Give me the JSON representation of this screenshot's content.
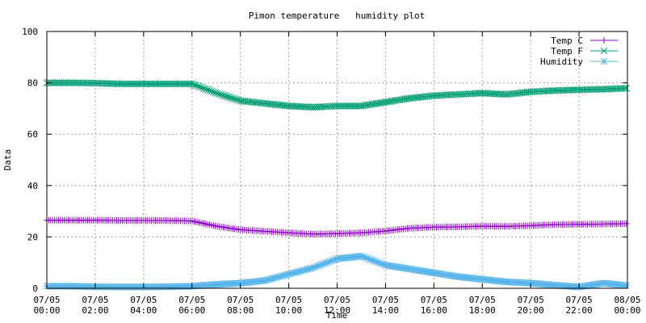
{
  "chart_data": {
    "type": "line",
    "title": "Pimon temperature   humidity plot",
    "xlabel": "Time",
    "ylabel": "Data",
    "xlim": [
      "07/05 00:00",
      "08/05 00:00"
    ],
    "ylim": [
      0,
      100
    ],
    "grid": true,
    "legend_position": "top-right",
    "y_ticks": [
      "0",
      "20",
      "40",
      "60",
      "80",
      "100"
    ],
    "x_ticks": [
      [
        "07/05",
        "00:00"
      ],
      [
        "07/05",
        "02:00"
      ],
      [
        "07/05",
        "04:00"
      ],
      [
        "07/05",
        "06:00"
      ],
      [
        "07/05",
        "08:00"
      ],
      [
        "07/05",
        "10:00"
      ],
      [
        "07/05",
        "12:00"
      ],
      [
        "07/05",
        "14:00"
      ],
      [
        "07/05",
        "16:00"
      ],
      [
        "07/05",
        "18:00"
      ],
      [
        "07/05",
        "20:00"
      ],
      [
        "07/05",
        "22:00"
      ],
      [
        "08/05",
        "00:00"
      ]
    ],
    "x": [
      "00:00",
      "01:00",
      "02:00",
      "03:00",
      "04:00",
      "05:00",
      "06:00",
      "07:00",
      "08:00",
      "09:00",
      "10:00",
      "11:00",
      "12:00",
      "13:00",
      "14:00",
      "15:00",
      "16:00",
      "17:00",
      "18:00",
      "19:00",
      "20:00",
      "21:00",
      "22:00",
      "23:00",
      "24:00"
    ],
    "series": [
      {
        "name": "Temp C",
        "color": "#9400d3",
        "marker": "plus",
        "values": [
          26.5,
          26.5,
          26.5,
          26.4,
          26.4,
          26.4,
          26.2,
          24.2,
          22.8,
          22.2,
          21.6,
          21.1,
          21.3,
          21.6,
          22.3,
          23.4,
          23.8,
          23.9,
          24.2,
          24.1,
          24.4,
          24.8,
          24.9,
          25.0,
          25.2
        ]
      },
      {
        "name": "Temp F",
        "color": "#009e73",
        "marker": "cross",
        "values": [
          80.0,
          80.0,
          79.9,
          79.6,
          79.6,
          79.6,
          79.6,
          76.0,
          73.0,
          72.0,
          71.0,
          70.5,
          71.0,
          71.0,
          72.5,
          74.0,
          75.0,
          75.5,
          76.0,
          75.5,
          76.5,
          77.0,
          77.3,
          77.5,
          77.9
        ]
      },
      {
        "name": "Humidity",
        "color": "#56b4e9",
        "marker": "star",
        "values": [
          0.8,
          0.8,
          0.6,
          0.5,
          0.5,
          0.6,
          0.8,
          1.5,
          2.0,
          3.0,
          5.5,
          8.0,
          11.5,
          12.5,
          9.0,
          7.5,
          6.0,
          4.5,
          3.5,
          2.5,
          2.0,
          1.2,
          0.5,
          2.0,
          1.0
        ]
      }
    ]
  }
}
